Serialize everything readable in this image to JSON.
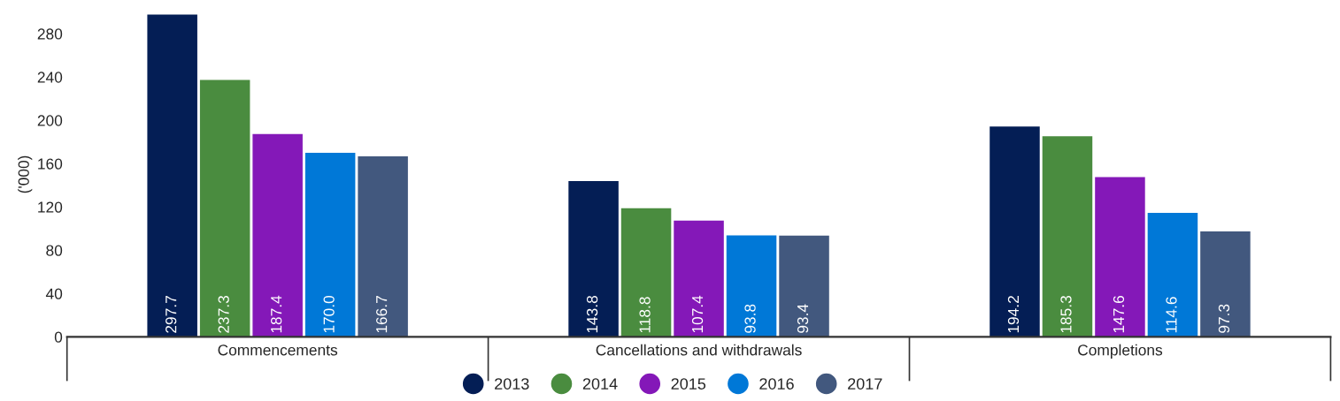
{
  "chart_data": {
    "type": "bar",
    "ylabel": "('000)",
    "categories": [
      "Commencements",
      "Cancellations and withdrawals",
      "Completions"
    ],
    "series": [
      {
        "name": "2013",
        "color": "#041e55",
        "values": [
          297.7,
          143.8,
          194.2
        ]
      },
      {
        "name": "2014",
        "color": "#4a8c3f",
        "values": [
          237.3,
          118.8,
          185.3
        ]
      },
      {
        "name": "2015",
        "color": "#8418b8",
        "values": [
          187.4,
          107.4,
          147.6
        ]
      },
      {
        "name": "2016",
        "color": "#0078d7",
        "values": [
          170.0,
          93.8,
          114.6
        ]
      },
      {
        "name": "2017",
        "color": "#42587e",
        "values": [
          166.7,
          93.4,
          97.3
        ]
      }
    ],
    "ylim": [
      0,
      300
    ],
    "yticks": [
      0,
      40,
      80,
      120,
      160,
      200,
      240,
      280
    ],
    "value_labels": [
      [
        "297.7",
        "143.8",
        "194.2"
      ],
      [
        "237.3",
        "118.8",
        "185.3"
      ],
      [
        "187.4",
        "107.4",
        "147.6"
      ],
      [
        "170.0",
        "93.8",
        "114.6"
      ],
      [
        "166.7",
        "93.4",
        "97.3"
      ]
    ],
    "grid": false,
    "legend": "bottom"
  }
}
